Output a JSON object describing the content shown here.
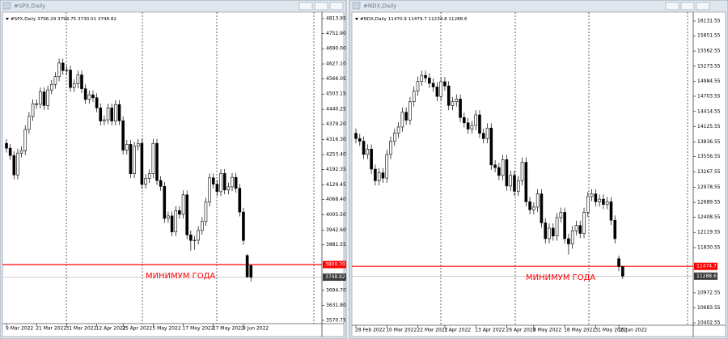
{
  "chart_data": [
    {
      "type": "candlestick",
      "title": "#SPX,Daily",
      "subtitle": "#SPX,Daily  3796.29 3799.75 3730.01 3748.82",
      "annotation": "МИНИМУМ ГОДА",
      "ylim": [
        3557.4,
        4843.9
      ],
      "yticks": [
        {
          "value": 4813.95,
          "label": "4813.95"
        },
        {
          "value": 4752.9,
          "label": "4752.90"
        },
        {
          "value": 4690,
          "label": "4690.00"
        },
        {
          "value": 4627.1,
          "label": "4627.10"
        },
        {
          "value": 4566.05,
          "label": "4566.05"
        },
        {
          "value": 4503.15,
          "label": "4503.15"
        },
        {
          "value": 4440.25,
          "label": "4440.25"
        },
        {
          "value": 4379.2,
          "label": "4379.20"
        },
        {
          "value": 4316.3,
          "label": "4316.30"
        },
        {
          "value": 4253.4,
          "label": "4253.40"
        },
        {
          "value": 4192.35,
          "label": "4192.35"
        },
        {
          "value": 4129.45,
          "label": "4129.45"
        },
        {
          "value": 4068.4,
          "label": "4068.40"
        },
        {
          "value": 4005.5,
          "label": "4005.50"
        },
        {
          "value": 3942.6,
          "label": "3942.60"
        },
        {
          "value": 3881.55,
          "label": "3881.55"
        },
        {
          "value": 3694.7,
          "label": "3694.70"
        },
        {
          "value": 3631.8,
          "label": "3631.80"
        },
        {
          "value": 3570.75,
          "label": "3570.75"
        }
      ],
      "level": {
        "value": 3800.7,
        "label": "3800.70"
      },
      "level_color": "#ff0000",
      "last_price": {
        "value": 3748.82,
        "label": "3748.82"
      },
      "color_up": "#ffffff",
      "color_down": "#000000",
      "categories": [
        "9 Mar 2022",
        null,
        null,
        null,
        null,
        null,
        null,
        null,
        "21 Mar 2022",
        null,
        null,
        null,
        null,
        null,
        null,
        null,
        "31 Mar 2022",
        null,
        null,
        null,
        null,
        null,
        null,
        null,
        "12 Apr 2022",
        null,
        null,
        null,
        null,
        null,
        null,
        "25 Apr 2022",
        null,
        null,
        null,
        null,
        null,
        null,
        null,
        "5 May 2022",
        null,
        null,
        null,
        null,
        null,
        null,
        null,
        "17 May 2022",
        null,
        null,
        null,
        null,
        null,
        null,
        null,
        "27 May 2022",
        null,
        null,
        null,
        null,
        null,
        null,
        null,
        "9 Jun 2022",
        null,
        null
      ],
      "values": [
        [
          4300,
          4318,
          4262,
          4280
        ],
        [
          4280,
          4298,
          4232,
          4250
        ],
        [
          4250,
          4268,
          4152,
          4170
        ],
        [
          4170,
          4278,
          4152,
          4260
        ],
        [
          4260,
          4288,
          4242,
          4270
        ],
        [
          4270,
          4375,
          4252,
          4357
        ],
        [
          4357,
          4429,
          4339,
          4411
        ],
        [
          4411,
          4481,
          4393,
          4463
        ],
        [
          4463,
          4481,
          4443,
          4461
        ],
        [
          4461,
          4530,
          4443,
          4512
        ],
        [
          4512,
          4530,
          4438,
          4456
        ],
        [
          4456,
          4538,
          4438,
          4520
        ],
        [
          4520,
          4561,
          4502,
          4543
        ],
        [
          4543,
          4593,
          4525,
          4575
        ],
        [
          4575,
          4649,
          4557,
          4631
        ],
        [
          4631,
          4649,
          4582,
          4600
        ],
        [
          4600,
          4620,
          4582,
          4602
        ],
        [
          4602,
          4620,
          4512,
          4530
        ],
        [
          4530,
          4563,
          4512,
          4545
        ],
        [
          4545,
          4600,
          4527,
          4582
        ],
        [
          4582,
          4600,
          4507,
          4525
        ],
        [
          4525,
          4543,
          4463,
          4481
        ],
        [
          4481,
          4518,
          4463,
          4500
        ],
        [
          4500,
          4518,
          4470,
          4488
        ],
        [
          4488,
          4506,
          4428,
          4446
        ],
        [
          4446,
          4464,
          4374,
          4392
        ],
        [
          4392,
          4415,
          4374,
          4397
        ],
        [
          4397,
          4464,
          4379,
          4446
        ],
        [
          4446,
          4464,
          4374,
          4392
        ],
        [
          4392,
          4478,
          4374,
          4460
        ],
        [
          4460,
          4478,
          4375,
          4393
        ],
        [
          4393,
          4411,
          4254,
          4272
        ],
        [
          4272,
          4314,
          4254,
          4296
        ],
        [
          4296,
          4314,
          4157,
          4175
        ],
        [
          4175,
          4306,
          4157,
          4288
        ],
        [
          4288,
          4318,
          4270,
          4300
        ],
        [
          4300,
          4318,
          4113,
          4131
        ],
        [
          4131,
          4173,
          4113,
          4155
        ],
        [
          4155,
          4193,
          4137,
          4175
        ],
        [
          4175,
          4318,
          4157,
          4300
        ],
        [
          4300,
          4318,
          4129,
          4147
        ],
        [
          4147,
          4165,
          4105,
          4123
        ],
        [
          4123,
          4141,
          3973,
          3991
        ],
        [
          3991,
          4019,
          3973,
          4001
        ],
        [
          4001,
          4019,
          3917,
          3935
        ],
        [
          3935,
          4041,
          3917,
          4023
        ],
        [
          4023,
          4041,
          3990,
          4008
        ],
        [
          4008,
          4106,
          3990,
          4088
        ],
        [
          4088,
          4106,
          3905,
          3923
        ],
        [
          3923,
          3941,
          3858,
          3900
        ],
        [
          3900,
          3919,
          3862,
          3901
        ],
        [
          3901,
          3959,
          3883,
          3941
        ],
        [
          3941,
          3996,
          3923,
          3978
        ],
        [
          3978,
          4076,
          3960,
          4058
        ],
        [
          4058,
          4176,
          4040,
          4158
        ],
        [
          4158,
          4176,
          4114,
          4132
        ],
        [
          4132,
          4150,
          4083,
          4101
        ],
        [
          4101,
          4194,
          4083,
          4176
        ],
        [
          4176,
          4194,
          4090,
          4108
        ],
        [
          4108,
          4139,
          4090,
          4121
        ],
        [
          4121,
          4178,
          4103,
          4160
        ],
        [
          4160,
          4178,
          4097,
          4115
        ],
        [
          4115,
          4133,
          3999,
          4017
        ],
        [
          4017,
          4035,
          3882,
          3900
        ],
        [
          3838,
          3845,
          3746,
          3750
        ],
        [
          3796.29,
          3799.75,
          3730.01,
          3748.82
        ]
      ]
    },
    {
      "type": "candlestick",
      "title": "#NDX,Daily",
      "subtitle": "#NDX,Daily  11470.9 11479.7 11234.8 11288.6",
      "annotation": "МИНИМУМ ГОДА",
      "ylim": [
        10356.5,
        16315.9
      ],
      "yticks": [
        {
          "value": 16131.55,
          "label": "16131.55"
        },
        {
          "value": 15851.55,
          "label": "15851.55"
        },
        {
          "value": 15562.55,
          "label": "15562.55"
        },
        {
          "value": 15273.55,
          "label": "15273.55"
        },
        {
          "value": 14984.55,
          "label": "14984.55"
        },
        {
          "value": 14703.55,
          "label": "14703.55"
        },
        {
          "value": 14414.55,
          "label": "14414.55"
        },
        {
          "value": 14125.55,
          "label": "14125.55"
        },
        {
          "value": 13836.55,
          "label": "13836.55"
        },
        {
          "value": 13556.55,
          "label": "13556.55"
        },
        {
          "value": 13267.55,
          "label": "13267.55"
        },
        {
          "value": 12978.55,
          "label": "12978.55"
        },
        {
          "value": 12689.55,
          "label": "12689.55"
        },
        {
          "value": 12408.55,
          "label": "12408.55"
        },
        {
          "value": 12119.55,
          "label": "12119.55"
        },
        {
          "value": 11830.55,
          "label": "11830.55"
        },
        {
          "value": 10972.55,
          "label": "10972.55"
        },
        {
          "value": 10683.55,
          "label": "10683.55"
        },
        {
          "value": 10402.55,
          "label": "10402.55"
        }
      ],
      "level": {
        "value": 11474.7,
        "label": "11474.7"
      },
      "level_color": "#ff0000",
      "last_price": {
        "value": 11288.6,
        "label": "11288.6"
      },
      "color_up": "#ffffff",
      "color_down": "#000000",
      "categories": [
        "28 Feb 2022",
        null,
        null,
        null,
        null,
        null,
        null,
        null,
        "10 Mar 2022",
        null,
        null,
        null,
        null,
        null,
        null,
        null,
        "22 Mar 2022",
        null,
        null,
        null,
        null,
        null,
        null,
        "1 Apr 2022",
        null,
        null,
        null,
        null,
        null,
        null,
        null,
        "13 Apr 2022",
        null,
        null,
        null,
        null,
        null,
        null,
        null,
        "26 Apr 2022",
        null,
        null,
        null,
        null,
        null,
        null,
        "6 May 2022",
        null,
        null,
        null,
        null,
        null,
        null,
        null,
        "18 May 2022",
        null,
        null,
        null,
        null,
        null,
        null,
        null,
        "31 May 2022",
        null,
        null,
        null,
        null,
        null,
        "10 Jun 2022",
        null
      ],
      "values": [
        [
          14000,
          14090,
          13810,
          13900
        ],
        [
          13900,
          13990,
          13760,
          13850
        ],
        [
          13850,
          13940,
          13510,
          13600
        ],
        [
          13600,
          13790,
          13510,
          13700
        ],
        [
          13700,
          13790,
          13230,
          13320
        ],
        [
          13320,
          13410,
          13010,
          13100
        ],
        [
          13100,
          13340,
          13010,
          13250
        ],
        [
          13250,
          13340,
          13060,
          13150
        ],
        [
          13150,
          13690,
          13060,
          13600
        ],
        [
          13600,
          13940,
          13510,
          13850
        ],
        [
          13850,
          14090,
          13760,
          14000
        ],
        [
          14000,
          14210,
          13910,
          14120
        ],
        [
          14120,
          14490,
          14030,
          14400
        ],
        [
          14400,
          14490,
          14160,
          14250
        ],
        [
          14250,
          14690,
          14160,
          14600
        ],
        [
          14600,
          14890,
          14510,
          14800
        ],
        [
          14800,
          15080,
          14710,
          14990
        ],
        [
          14990,
          15190,
          14900,
          15100
        ],
        [
          15100,
          15190,
          14960,
          15050
        ],
        [
          15050,
          15140,
          14860,
          14950
        ],
        [
          14950,
          15040,
          14790,
          14880
        ],
        [
          14880,
          14970,
          14610,
          14700
        ],
        [
          14700,
          15070,
          14610,
          14980
        ],
        [
          14980,
          15070,
          14810,
          14900
        ],
        [
          14900,
          14990,
          14440,
          14530
        ],
        [
          14530,
          14690,
          14440,
          14600
        ],
        [
          14600,
          14740,
          14510,
          14650
        ],
        [
          14650,
          14740,
          14210,
          14300
        ],
        [
          14300,
          14390,
          14110,
          14200
        ],
        [
          14200,
          14290,
          13990,
          14080
        ],
        [
          14080,
          14240,
          13990,
          14150
        ],
        [
          14150,
          14440,
          14060,
          14350
        ],
        [
          14350,
          14440,
          13910,
          14000
        ],
        [
          14000,
          14090,
          13810,
          13900
        ],
        [
          13900,
          14190,
          13810,
          14100
        ],
        [
          14100,
          14190,
          13310,
          13400
        ],
        [
          13400,
          13490,
          13260,
          13350
        ],
        [
          13350,
          13440,
          13110,
          13200
        ],
        [
          13200,
          13590,
          13110,
          13500
        ],
        [
          13500,
          13590,
          12910,
          13000
        ],
        [
          13000,
          13290,
          12910,
          13200
        ],
        [
          13200,
          13290,
          12810,
          12900
        ],
        [
          12900,
          13190,
          12810,
          13100
        ],
        [
          13100,
          13540,
          13010,
          13450
        ],
        [
          13450,
          13540,
          12610,
          12700
        ],
        [
          12700,
          12790,
          12460,
          12550
        ],
        [
          12550,
          12690,
          12460,
          12600
        ],
        [
          12600,
          12940,
          12510,
          12850
        ],
        [
          12850,
          12940,
          12210,
          12300
        ],
        [
          12300,
          12390,
          11910,
          12000
        ],
        [
          12000,
          12290,
          11910,
          12200
        ],
        [
          12200,
          12290,
          11960,
          12050
        ],
        [
          12050,
          12490,
          11960,
          12400
        ],
        [
          12400,
          12590,
          12310,
          12500
        ],
        [
          12500,
          12590,
          11910,
          12000
        ],
        [
          12000,
          12090,
          11700,
          11900
        ],
        [
          11900,
          12240,
          11810,
          12150
        ],
        [
          12150,
          12340,
          12060,
          12250
        ],
        [
          12250,
          12340,
          12010,
          12100
        ],
        [
          12100,
          12590,
          12010,
          12500
        ],
        [
          12500,
          12890,
          12410,
          12800
        ],
        [
          12800,
          12940,
          12710,
          12850
        ],
        [
          12850,
          12940,
          12610,
          12700
        ],
        [
          12700,
          12840,
          12610,
          12750
        ],
        [
          12750,
          12840,
          12560,
          12650
        ],
        [
          12650,
          12790,
          12560,
          12700
        ],
        [
          12700,
          12790,
          12260,
          12350
        ],
        [
          12350,
          12440,
          11910,
          12000
        ],
        [
          11620,
          11680,
          11380,
          11470
        ],
        [
          11470.9,
          11479.7,
          11234.8,
          11288.6
        ]
      ]
    }
  ]
}
